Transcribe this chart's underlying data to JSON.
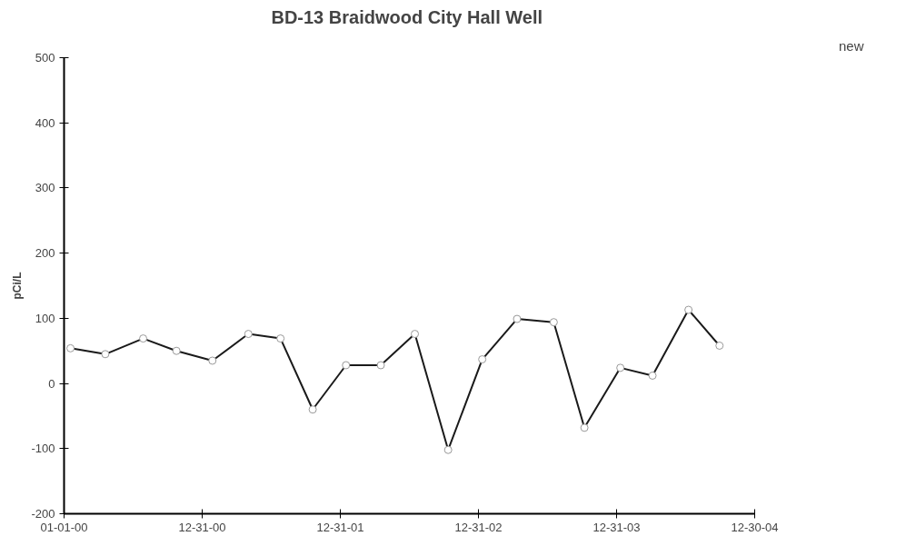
{
  "chart_data": {
    "type": "line",
    "title": "BD-13  Braidwood City Hall Well",
    "ylabel": "pCi/L",
    "annotations": [
      "new"
    ],
    "x": [
      "2000-01-18",
      "2000-04-19",
      "2000-07-28",
      "2000-10-24",
      "2001-01-27",
      "2001-05-02",
      "2001-07-26",
      "2001-10-19",
      "2002-01-15",
      "2002-04-17",
      "2002-07-16",
      "2002-10-12",
      "2003-01-10",
      "2003-04-12",
      "2003-07-18",
      "2003-10-07",
      "2004-01-10",
      "2004-04-04",
      "2004-07-08",
      "2004-09-28"
    ],
    "series": [
      {
        "color": "#1a1a1a",
        "values": [
          54,
          45,
          69,
          50,
          35,
          76,
          69,
          -40,
          28,
          28,
          76,
          -102,
          37,
          99,
          94,
          -68,
          24,
          12,
          113,
          58
        ]
      }
    ],
    "xlim": [
      "2000-01-01",
      "2004-12-30"
    ],
    "xticks": [
      {
        "value": "2000-01-01",
        "label": "01-01-00"
      },
      {
        "value": "2000-12-31",
        "label": "12-31-00"
      },
      {
        "value": "2001-12-31",
        "label": "12-31-01"
      },
      {
        "value": "2002-12-31",
        "label": "12-31-02"
      },
      {
        "value": "2003-12-31",
        "label": "12-31-03"
      },
      {
        "value": "2004-12-30",
        "label": "12-30-04"
      }
    ],
    "ylim": [
      -200,
      500
    ],
    "yticks": [
      -200,
      -100,
      0,
      100,
      200,
      300,
      400,
      500
    ],
    "grid": false,
    "marker": "circle",
    "line_style": "solid"
  }
}
